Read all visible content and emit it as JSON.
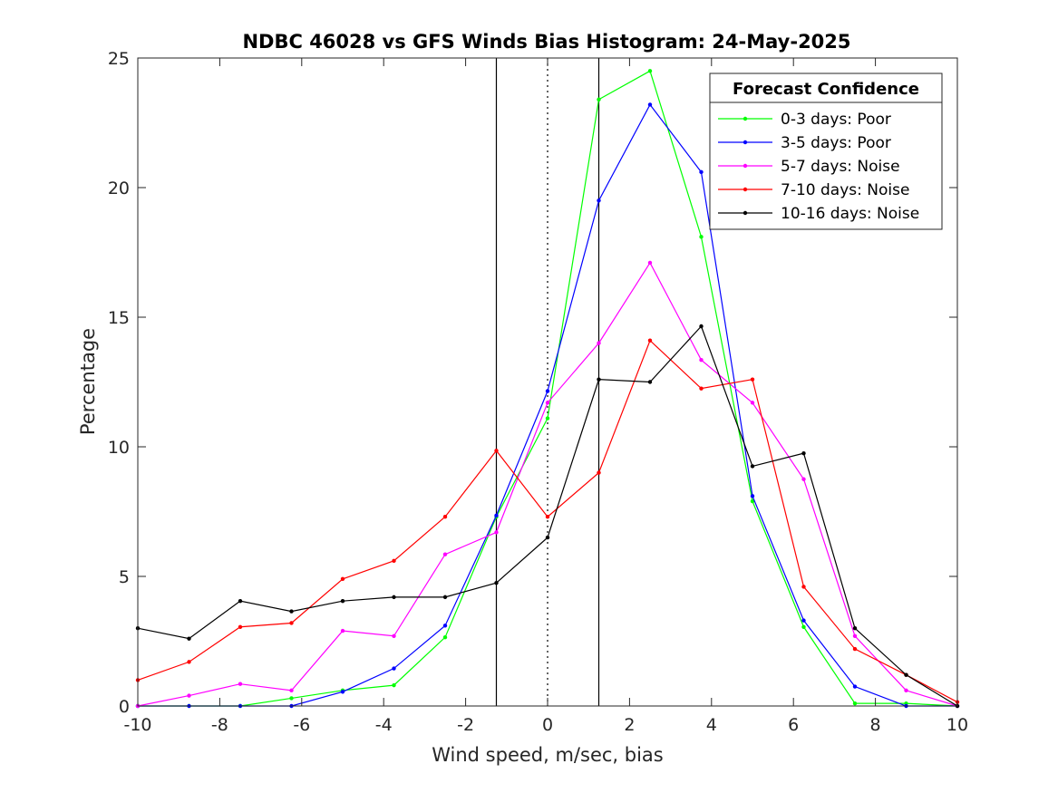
{
  "chart_data": {
    "type": "line",
    "title": "NDBC 46028 vs GFS Winds Bias Histogram: 24-May-2025",
    "xlabel": "Wind speed, m/sec, bias",
    "ylabel": "Percentage",
    "xlim": [
      -10,
      10
    ],
    "ylim": [
      0,
      25
    ],
    "xticks": [
      -10,
      -8,
      -6,
      -4,
      -2,
      0,
      2,
      4,
      6,
      8,
      10
    ],
    "yticks": [
      0,
      5,
      10,
      15,
      20,
      25
    ],
    "grid": false,
    "legend": {
      "title": "Forecast Confidence",
      "position": "top-right"
    },
    "reference_lines": [
      {
        "x": -1.25,
        "style": "solid"
      },
      {
        "x": 0,
        "style": "dotted"
      },
      {
        "x": 1.25,
        "style": "solid"
      }
    ],
    "x": [
      -10,
      -8.75,
      -7.5,
      -6.25,
      -5,
      -3.75,
      -2.5,
      -1.25,
      0,
      1.25,
      2.5,
      3.75,
      5,
      6.25,
      7.5,
      8.75,
      10
    ],
    "series": [
      {
        "name": "0-3 days: Poor",
        "color": "#00ff00",
        "values": [
          0,
          0,
          0,
          0.3,
          0.6,
          0.8,
          2.65,
          7.3,
          11.1,
          23.4,
          24.5,
          18.1,
          7.9,
          3.05,
          0.1,
          0.1,
          0
        ]
      },
      {
        "name": "3-5 days: Poor",
        "color": "#0000ff",
        "values": [
          0,
          0,
          0,
          0,
          0.55,
          1.45,
          3.1,
          7.35,
          12.15,
          19.5,
          23.2,
          20.6,
          8.1,
          3.3,
          0.75,
          0,
          0
        ]
      },
      {
        "name": "5-7 days: Noise",
        "color": "#ff00ff",
        "values": [
          0,
          0.4,
          0.85,
          0.6,
          2.9,
          2.7,
          5.85,
          6.7,
          11.7,
          14.0,
          17.1,
          13.35,
          11.7,
          8.75,
          2.7,
          0.6,
          0
        ]
      },
      {
        "name": "7-10 days: Noise",
        "color": "#ff0000",
        "values": [
          1.0,
          1.7,
          3.05,
          3.2,
          4.9,
          5.6,
          7.3,
          9.85,
          7.3,
          9.0,
          14.1,
          12.25,
          12.6,
          4.6,
          2.2,
          1.2,
          0.15
        ]
      },
      {
        "name": "10-16 days: Noise",
        "color": "#000000",
        "values": [
          3.0,
          2.6,
          4.05,
          3.65,
          4.05,
          4.2,
          4.2,
          4.75,
          6.5,
          12.6,
          12.5,
          14.65,
          9.25,
          9.75,
          3.0,
          1.2,
          0
        ]
      }
    ]
  }
}
